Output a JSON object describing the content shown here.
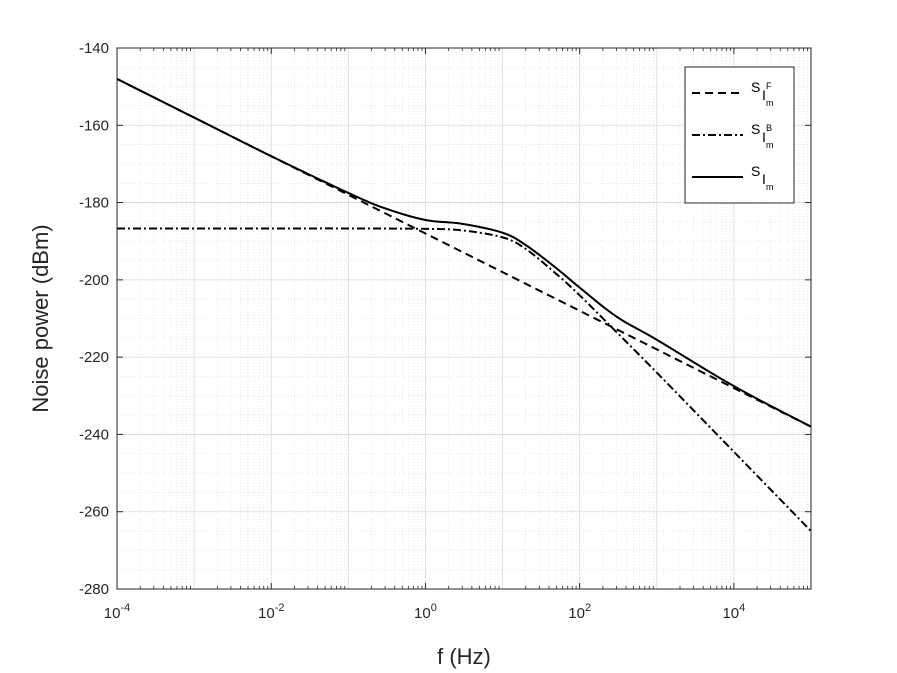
{
  "chart_data": {
    "type": "line",
    "xlabel": "f (Hz)",
    "ylabel": "Noise power (dBm)",
    "xscale": "log",
    "xlim": [
      0.0001,
      100000
    ],
    "ylim": [
      -280,
      -140
    ],
    "grid": true,
    "minor_grid": true,
    "legend_position": "top-right",
    "x_ticks": [
      {
        "value": 0.0001,
        "base": "10",
        "exp": "-4"
      },
      {
        "value": 0.01,
        "base": "10",
        "exp": "-2"
      },
      {
        "value": 1,
        "base": "10",
        "exp": "0"
      },
      {
        "value": 100,
        "base": "10",
        "exp": "2"
      },
      {
        "value": 10000,
        "base": "10",
        "exp": "4"
      }
    ],
    "y_ticks": [
      {
        "value": -140,
        "label": "-140"
      },
      {
        "value": -160,
        "label": "-160"
      },
      {
        "value": -180,
        "label": "-180"
      },
      {
        "value": -200,
        "label": "-200"
      },
      {
        "value": -220,
        "label": "-220"
      },
      {
        "value": -240,
        "label": "-240"
      },
      {
        "value": -260,
        "label": "-260"
      },
      {
        "value": -280,
        "label": "-280"
      }
    ],
    "series": [
      {
        "name": "S_{I_m^F}",
        "label_main": "S",
        "label_sub": "I",
        "label_sup": "F",
        "label_subsub": "m",
        "style": "dashed",
        "color": "#000000",
        "x": [
          0.0001,
          0.001,
          0.01,
          0.1,
          1,
          10,
          100,
          1000,
          10000,
          100000
        ],
        "y": [
          -148,
          -158,
          -168,
          -178,
          -188,
          -198,
          -208,
          -218,
          -228,
          -238
        ]
      },
      {
        "name": "S_{I_m^B}",
        "label_main": "S",
        "label_sub": "I",
        "label_sup": "B",
        "label_subsub": "m",
        "style": "dashdot",
        "color": "#000000",
        "x": [
          0.0001,
          0.01,
          0.1,
          1,
          3,
          10,
          20,
          50,
          100,
          300,
          1000,
          10000,
          100000
        ],
        "y": [
          -186.7,
          -186.7,
          -186.7,
          -186.8,
          -187.2,
          -189,
          -192,
          -198.5,
          -204,
          -213.5,
          -224,
          -244.5,
          -265
        ]
      },
      {
        "name": "S_{I_m}",
        "label_main": "S",
        "label_sub": "I",
        "label_sup": "",
        "label_subsub": "m",
        "style": "solid",
        "color": "#000000",
        "x": [
          0.0001,
          0.001,
          0.01,
          0.1,
          0.3,
          1,
          3,
          10,
          20,
          50,
          100,
          300,
          1000,
          10000,
          100000
        ],
        "y": [
          -148,
          -158,
          -168,
          -177.5,
          -181.5,
          -184.5,
          -185.5,
          -187.8,
          -191,
          -197,
          -202,
          -209.5,
          -215.5,
          -227.5,
          -238
        ]
      }
    ]
  }
}
